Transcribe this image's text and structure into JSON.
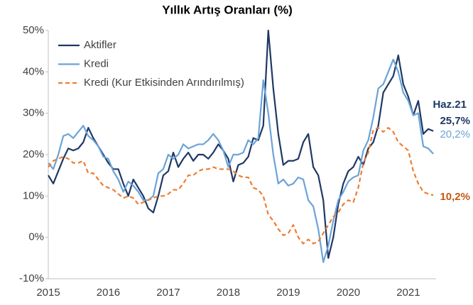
{
  "chart_data": {
    "type": "line",
    "title": "Yıllık Artış Oranları (%)",
    "categories": [
      "2015",
      null,
      null,
      null,
      null,
      null,
      null,
      null,
      null,
      null,
      null,
      null,
      "2016",
      null,
      null,
      null,
      null,
      null,
      null,
      null,
      null,
      null,
      null,
      null,
      "2017",
      null,
      null,
      null,
      null,
      null,
      null,
      null,
      null,
      null,
      null,
      null,
      "2018",
      null,
      null,
      null,
      null,
      null,
      null,
      null,
      null,
      null,
      null,
      null,
      "2019",
      null,
      null,
      null,
      null,
      null,
      null,
      null,
      null,
      null,
      null,
      null,
      "2020",
      null,
      null,
      null,
      null,
      null,
      null,
      null,
      null,
      null,
      null,
      null,
      "2021",
      null,
      null,
      null,
      null,
      null
    ],
    "series": [
      {
        "name": "Aktifler",
        "color": "#1f3864",
        "dashed": false,
        "values": [
          15,
          13,
          16,
          19,
          21.5,
          21,
          21.5,
          23,
          26.5,
          24,
          22,
          20,
          18,
          16.5,
          16.5,
          13,
          10,
          14,
          12,
          10,
          7,
          6,
          10,
          15,
          16,
          20.5,
          17,
          19,
          20.5,
          18.5,
          20,
          20,
          19,
          20.5,
          22.5,
          21,
          19,
          13.5,
          17.5,
          18,
          19.5,
          24,
          23.5,
          27,
          50,
          36,
          25,
          17.5,
          18.5,
          18.5,
          19,
          23,
          25,
          17,
          15,
          9,
          -5,
          0,
          8,
          13,
          16,
          17,
          19.5,
          17.5,
          21.5,
          23,
          27,
          35,
          37,
          39,
          44,
          37,
          34,
          29.5,
          33,
          25,
          26.2,
          25.7
        ],
        "value_labels": [
          null,
          null,
          null,
          null,
          null,
          null,
          null,
          null,
          null,
          null,
          null,
          null,
          null,
          null,
          null,
          null,
          null,
          null,
          null,
          null,
          null,
          null,
          null,
          null,
          null,
          null,
          null,
          null,
          null,
          null,
          null,
          null,
          null,
          null,
          null,
          null,
          null,
          null,
          null,
          null,
          null,
          null,
          null,
          null,
          null,
          null,
          null,
          null,
          null,
          null,
          null,
          null,
          null,
          null,
          null,
          null,
          null,
          null,
          null,
          null,
          null,
          null,
          null,
          null,
          null,
          null,
          null,
          null,
          null,
          null,
          null,
          null,
          null,
          null,
          null,
          null,
          null,
          "25,7%"
        ]
      },
      {
        "name": "Kredi",
        "color": "#6aa3d8",
        "dashed": false,
        "values": [
          18,
          16.5,
          20,
          24.5,
          25,
          24,
          25.5,
          27,
          24.5,
          23.5,
          22,
          19.5,
          19,
          16,
          14,
          11,
          13.5,
          12.5,
          11,
          9,
          9,
          10,
          15.5,
          16.5,
          20,
          19,
          20,
          22.5,
          21.5,
          22,
          22.5,
          22.5,
          23.5,
          25,
          23.5,
          21,
          17,
          20,
          20,
          20.5,
          23.5,
          22.5,
          24,
          38,
          30,
          20,
          13,
          14,
          12.5,
          13,
          14.5,
          14,
          9,
          7.5,
          2,
          -6,
          -2,
          4,
          9,
          11,
          13.5,
          14.5,
          15,
          21,
          23.5,
          29,
          36,
          37,
          40,
          43,
          40,
          35,
          33,
          29.5,
          30,
          22,
          21.5,
          20.2
        ],
        "value_labels": [
          null,
          null,
          null,
          null,
          null,
          null,
          null,
          null,
          null,
          null,
          null,
          null,
          null,
          null,
          null,
          null,
          null,
          null,
          null,
          null,
          null,
          null,
          null,
          null,
          null,
          null,
          null,
          null,
          null,
          null,
          null,
          null,
          null,
          null,
          null,
          null,
          null,
          null,
          null,
          null,
          null,
          null,
          null,
          null,
          null,
          null,
          null,
          null,
          null,
          null,
          null,
          null,
          null,
          null,
          null,
          null,
          null,
          null,
          null,
          null,
          null,
          null,
          null,
          null,
          null,
          null,
          null,
          null,
          null,
          null,
          null,
          null,
          null,
          null,
          null,
          null,
          null,
          "20,2%"
        ]
      },
      {
        "name": "Kredi (Kur Etkisinden Arındırılmış)",
        "color": "#ed7d31",
        "dashed": true,
        "values": [
          17,
          18.5,
          19,
          19.5,
          19,
          18,
          18,
          18.5,
          15.5,
          15.5,
          14,
          12.5,
          12,
          11.5,
          10.5,
          9.5,
          10,
          9.5,
          8,
          8.5,
          9,
          9.5,
          10,
          10,
          10.5,
          11.5,
          11.5,
          13,
          15,
          15,
          16,
          16.5,
          16.5,
          17,
          16.5,
          16.5,
          16.5,
          16,
          15,
          14.5,
          14.5,
          12,
          11.5,
          10,
          5.5,
          4,
          2,
          0.5,
          1,
          3,
          0,
          -1.5,
          -0.5,
          -1.5,
          -1,
          1,
          3,
          5,
          6,
          8,
          9,
          8.5,
          12,
          18,
          20.5,
          26,
          26.5,
          25.5,
          26.5,
          25.5,
          23,
          22,
          21,
          16,
          13,
          11,
          10.5,
          10.2
        ],
        "value_labels": [
          null,
          null,
          null,
          null,
          null,
          null,
          null,
          null,
          null,
          null,
          null,
          null,
          null,
          null,
          null,
          null,
          null,
          null,
          null,
          null,
          null,
          null,
          null,
          null,
          null,
          null,
          null,
          null,
          null,
          null,
          null,
          null,
          null,
          null,
          null,
          null,
          null,
          null,
          null,
          null,
          null,
          null,
          null,
          null,
          null,
          null,
          null,
          null,
          null,
          null,
          null,
          null,
          null,
          null,
          null,
          null,
          null,
          null,
          null,
          null,
          null,
          null,
          null,
          null,
          null,
          null,
          null,
          null,
          null,
          null,
          null,
          null,
          null,
          null,
          null,
          null,
          null,
          "10,2%"
        ]
      }
    ],
    "annotation": "Haz.21",
    "ylim": [
      -10,
      50
    ],
    "yticks": [
      {
        "value": -10,
        "label": "-10%"
      },
      {
        "value": 0,
        "label": "0%"
      },
      {
        "value": 10,
        "label": "10%"
      },
      {
        "value": 20,
        "label": "20%"
      },
      {
        "value": 30,
        "label": "30%"
      },
      {
        "value": 40,
        "label": "40%"
      },
      {
        "value": 50,
        "label": "50%"
      }
    ],
    "grid": false,
    "legend": "top-left"
  }
}
